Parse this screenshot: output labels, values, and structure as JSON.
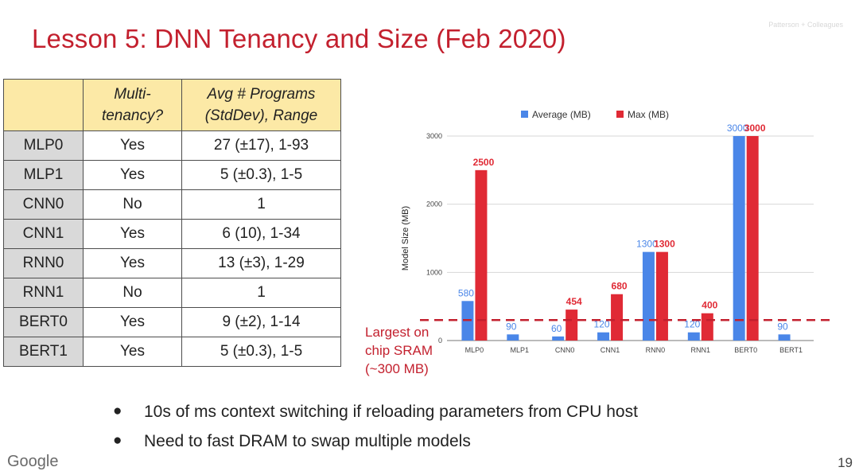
{
  "slide": {
    "title": "Lesson 5: DNN Tenancy and Size (Feb 2020)",
    "watermark": "Patterson + Colleagues",
    "footer_logo": "Google",
    "page_number": "19"
  },
  "table": {
    "headers": [
      "",
      "Multi-\ntenancy?",
      "Avg # Programs\n(StdDev), Range"
    ],
    "rows": [
      {
        "model": "MLP0",
        "multi": "Yes",
        "programs": "27 (±17), 1-93"
      },
      {
        "model": "MLP1",
        "multi": "Yes",
        "programs": "5 (±0.3), 1-5"
      },
      {
        "model": "CNN0",
        "multi": "No",
        "programs": "1"
      },
      {
        "model": "CNN1",
        "multi": "Yes",
        "programs": "6 (10), 1-34"
      },
      {
        "model": "RNN0",
        "multi": "Yes",
        "programs": "13 (±3), 1-29"
      },
      {
        "model": "RNN1",
        "multi": "No",
        "programs": "1"
      },
      {
        "model": "BERT0",
        "multi": "Yes",
        "programs": "9 (±2), 1-14"
      },
      {
        "model": "BERT1",
        "multi": "Yes",
        "programs": "5 (±0.3), 1-5"
      }
    ]
  },
  "chart_data": {
    "type": "bar",
    "title": "",
    "xlabel": "",
    "ylabel": "Model Size (MB)",
    "ylim": [
      0,
      3000
    ],
    "yticks": [
      0,
      1000,
      2000,
      3000
    ],
    "grid": true,
    "legend_position": "top",
    "categories": [
      "MLP0",
      "MLP1",
      "CNN0",
      "CNN1",
      "RNN0",
      "RNN1",
      "BERT0",
      "BERT1"
    ],
    "series": [
      {
        "name": "Average (MB)",
        "color": "#4a86e8",
        "values": [
          580,
          90,
          60,
          120,
          1300,
          120,
          3000,
          90
        ],
        "labels": [
          "580",
          "90",
          "60",
          "120",
          "1300",
          "120",
          "3000",
          "90"
        ]
      },
      {
        "name": "Max (MB)",
        "color": "#e02a35",
        "values": [
          2500,
          null,
          454,
          680,
          1300,
          400,
          3000,
          null
        ],
        "labels": [
          "2500",
          "",
          "454",
          "680",
          "1300",
          "400",
          "3000",
          ""
        ]
      }
    ],
    "reference_line": {
      "value": 300,
      "label": "Largest on chip SRAM (~300 MB)",
      "color": "#c3202e"
    }
  },
  "sram_label": {
    "line1": "Largest on",
    "line2": "chip SRAM",
    "line3": "(~300 MB)"
  },
  "bullets": [
    "10s of ms context switching if reloading parameters from CPU host",
    "Need to fast DRAM to swap multiple models"
  ]
}
